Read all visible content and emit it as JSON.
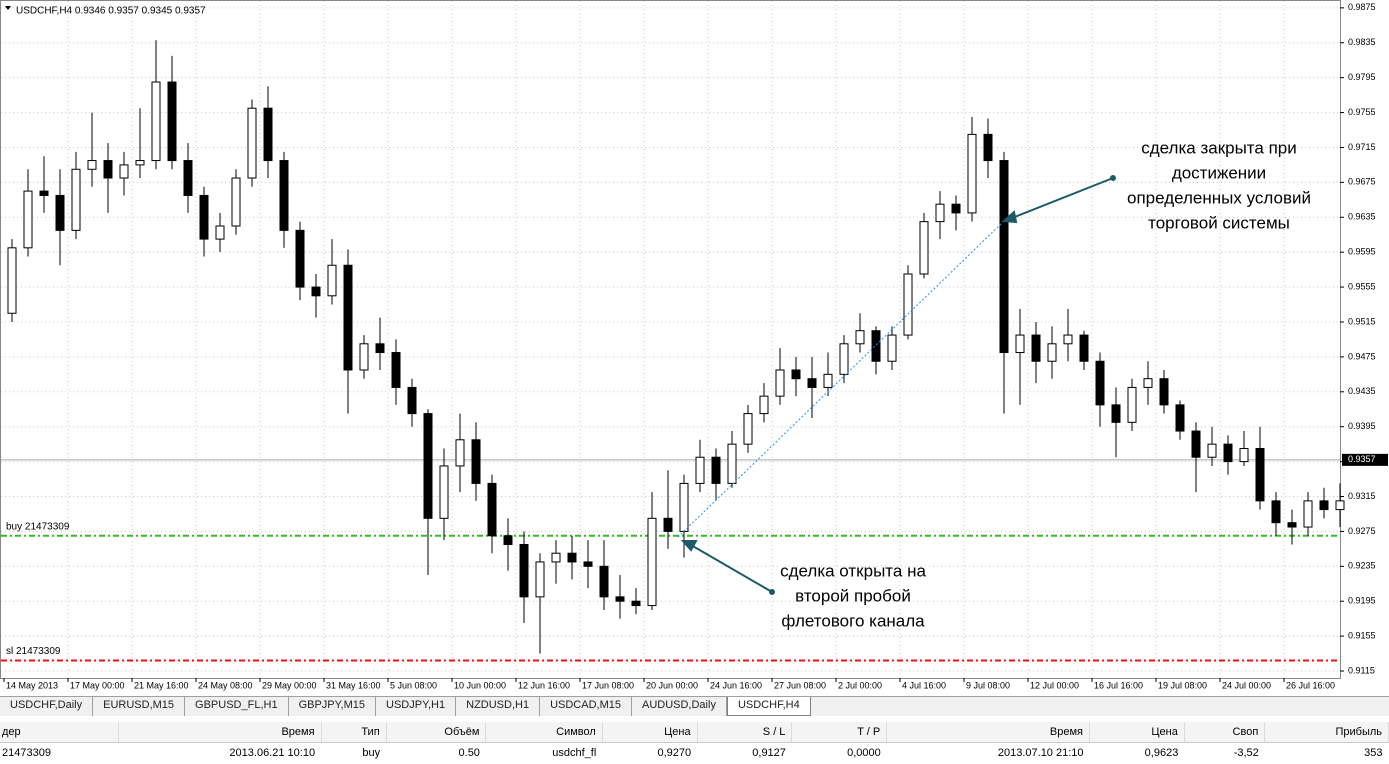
{
  "chart_data": {
    "type": "candlestick",
    "header": "USDCHF,H4  0.9346 0.9357 0.9345 0.9357",
    "categories": [
      "14 May 2013",
      null,
      null,
      null,
      "17 May 00:00",
      null,
      null,
      null,
      "21 May 16:00",
      null,
      null,
      null,
      "24 May 08:00",
      null,
      null,
      null,
      "29 May 00:00",
      null,
      null,
      null,
      "31 May 16:00",
      null,
      null,
      null,
      "5 Jun 08:00",
      null,
      null,
      null,
      "10 Jun 00:00",
      null,
      null,
      null,
      "12 Jun 16:00",
      null,
      null,
      null,
      "17 Jun 08:00",
      null,
      null,
      null,
      "20 Jun 00:00",
      null,
      null,
      null,
      "24 Jun 16:00",
      null,
      null,
      null,
      "27 Jun 08:00",
      null,
      null,
      null,
      "2 Jul 00:00",
      null,
      null,
      null,
      "4 Jul 16:00",
      null,
      null,
      null,
      "9 Jul 08:00",
      null,
      null,
      null,
      "12 Jul 00:00",
      null,
      null,
      null,
      "16 Jul 16:00",
      null,
      null,
      null,
      "19 Jul 08:00",
      null,
      null,
      null,
      "24 Jul 00:00",
      null,
      null,
      null,
      "26 Jul 16:00",
      null,
      null,
      null
    ],
    "open": [
      0.9525,
      0.96,
      0.9665,
      0.966,
      0.962,
      0.969,
      0.97,
      0.968,
      0.9695,
      0.97,
      0.979,
      0.97,
      0.966,
      0.961,
      0.9625,
      0.968,
      0.976,
      0.97,
      0.962,
      0.9555,
      0.9545,
      0.958,
      0.946,
      0.949,
      0.948,
      0.944,
      0.941,
      0.929,
      0.935,
      0.938,
      0.933,
      0.927,
      0.926,
      0.92,
      0.924,
      0.925,
      0.924,
      0.9235,
      0.92,
      0.9195,
      0.919,
      0.929,
      0.9275,
      0.933,
      0.936,
      0.933,
      0.9375,
      0.941,
      0.943,
      0.946,
      0.945,
      0.944,
      0.9455,
      0.949,
      0.9505,
      0.947,
      0.95,
      0.957,
      0.963,
      0.965,
      0.964,
      0.973,
      0.97,
      0.948,
      0.95,
      0.947,
      0.949,
      0.95,
      0.947,
      0.942,
      0.94,
      0.944,
      0.945,
      0.942,
      0.939,
      0.936,
      0.9375,
      0.9355,
      0.937,
      0.931,
      0.9285,
      0.928,
      0.931,
      0.93
    ],
    "high": [
      0.961,
      0.969,
      0.9705,
      0.969,
      0.971,
      0.9755,
      0.972,
      0.971,
      0.976,
      0.9838,
      0.982,
      0.972,
      0.967,
      0.964,
      0.969,
      0.977,
      0.9785,
      0.971,
      0.963,
      0.957,
      0.961,
      0.9598,
      0.95,
      0.952,
      0.9495,
      0.945,
      0.9415,
      0.937,
      0.941,
      0.94,
      0.934,
      0.929,
      0.9275,
      0.925,
      0.9265,
      0.927,
      0.9265,
      0.9265,
      0.9225,
      0.921,
      0.932,
      0.9345,
      0.934,
      0.938,
      0.937,
      0.939,
      0.942,
      0.9445,
      0.9485,
      0.9475,
      0.9475,
      0.948,
      0.95,
      0.9525,
      0.951,
      0.951,
      0.958,
      0.964,
      0.9665,
      0.966,
      0.975,
      0.9748,
      0.971,
      0.953,
      0.9515,
      0.951,
      0.953,
      0.9505,
      0.948,
      0.944,
      0.945,
      0.947,
      0.946,
      0.9425,
      0.94,
      0.9395,
      0.9385,
      0.939,
      0.9395,
      0.932,
      0.93,
      0.932,
      0.9325,
      0.933
    ],
    "low": [
      0.9515,
      0.959,
      0.964,
      0.958,
      0.961,
      0.967,
      0.964,
      0.966,
      0.968,
      0.969,
      0.969,
      0.964,
      0.959,
      0.9595,
      0.9615,
      0.967,
      0.968,
      0.96,
      0.954,
      0.952,
      0.9535,
      0.941,
      0.945,
      0.946,
      0.942,
      0.9395,
      0.9225,
      0.9265,
      0.932,
      0.931,
      0.925,
      0.923,
      0.917,
      0.9135,
      0.9215,
      0.922,
      0.921,
      0.9185,
      0.9175,
      0.918,
      0.9185,
      0.9255,
      0.9245,
      0.932,
      0.931,
      0.9325,
      0.9365,
      0.94,
      0.942,
      0.943,
      0.9405,
      0.943,
      0.9445,
      0.948,
      0.9455,
      0.946,
      0.9495,
      0.9565,
      0.961,
      0.962,
      0.963,
      0.968,
      0.941,
      0.942,
      0.9445,
      0.945,
      0.947,
      0.946,
      0.9395,
      0.936,
      0.939,
      0.942,
      0.941,
      0.938,
      0.932,
      0.935,
      0.934,
      0.935,
      0.93,
      0.927,
      0.926,
      0.927,
      0.929,
      0.928
    ],
    "close": [
      0.96,
      0.9665,
      0.966,
      0.962,
      0.969,
      0.97,
      0.968,
      0.9695,
      0.97,
      0.979,
      0.97,
      0.966,
      0.961,
      0.9625,
      0.968,
      0.976,
      0.97,
      0.962,
      0.9555,
      0.9545,
      0.958,
      0.946,
      0.949,
      0.948,
      0.944,
      0.941,
      0.929,
      0.935,
      0.938,
      0.933,
      0.927,
      0.926,
      0.92,
      0.924,
      0.925,
      0.924,
      0.9235,
      0.92,
      0.9195,
      0.919,
      0.929,
      0.9275,
      0.933,
      0.936,
      0.933,
      0.9375,
      0.941,
      0.943,
      0.946,
      0.945,
      0.944,
      0.9455,
      0.949,
      0.9505,
      0.947,
      0.95,
      0.957,
      0.963,
      0.965,
      0.964,
      0.973,
      0.97,
      0.948,
      0.95,
      0.947,
      0.949,
      0.95,
      0.947,
      0.942,
      0.94,
      0.944,
      0.945,
      0.942,
      0.939,
      0.936,
      0.9375,
      0.9355,
      0.937,
      0.931,
      0.9285,
      0.928,
      0.931,
      0.93,
      0.931
    ],
    "up_color": "#ffffff",
    "down_color": "#000000",
    "ylim": [
      0.9107,
      0.9884
    ],
    "yticks": [
      0.9875,
      0.9835,
      0.9795,
      0.9755,
      0.9715,
      0.9675,
      0.9635,
      0.9595,
      0.9555,
      0.9515,
      0.9475,
      0.9435,
      0.9395,
      0.9355,
      0.9315,
      0.9275,
      0.9235,
      0.9195,
      0.9155,
      0.9115
    ],
    "grid": true,
    "price_line": 0.9357,
    "levels": [
      {
        "label": "buy 21473309",
        "value": 0.927,
        "color": "#33bb22"
      },
      {
        "label": "sl 21473309",
        "value": 0.9127,
        "color": "#ee1111"
      }
    ],
    "annotations": [
      {
        "lines": [
          "сделка закрыта при",
          "достижении",
          "определенных условий",
          "торговой системы"
        ]
      },
      {
        "lines": [
          "сделка открыта на",
          "второй пробой",
          "флетового канала"
        ]
      }
    ]
  },
  "tabs": [
    "USDCHF,Daily",
    "EURUSD,M15",
    "GBPUSD_FL,H1",
    "GBPJPY,M15",
    "USDJPY,H1",
    "NZDUSD,H1",
    "USDCAD,M15",
    "AUDUSD,Daily",
    "USDCHF,H4"
  ],
  "table": {
    "header": [
      "дер",
      "Время",
      "Тип",
      "Объём",
      "Символ",
      "Цена",
      "S / L",
      "T / P",
      "Время",
      "Цена",
      "Своп",
      "Прибыль"
    ],
    "rows": [
      [
        "21473309",
        "2013.06.21 10:10",
        "buy",
        "0.50",
        "usdchf_fl",
        "0,9270",
        "0,9127",
        "0,0000",
        "2013.07.10 21:10",
        "0,9623",
        "-3,52",
        "353"
      ]
    ]
  }
}
